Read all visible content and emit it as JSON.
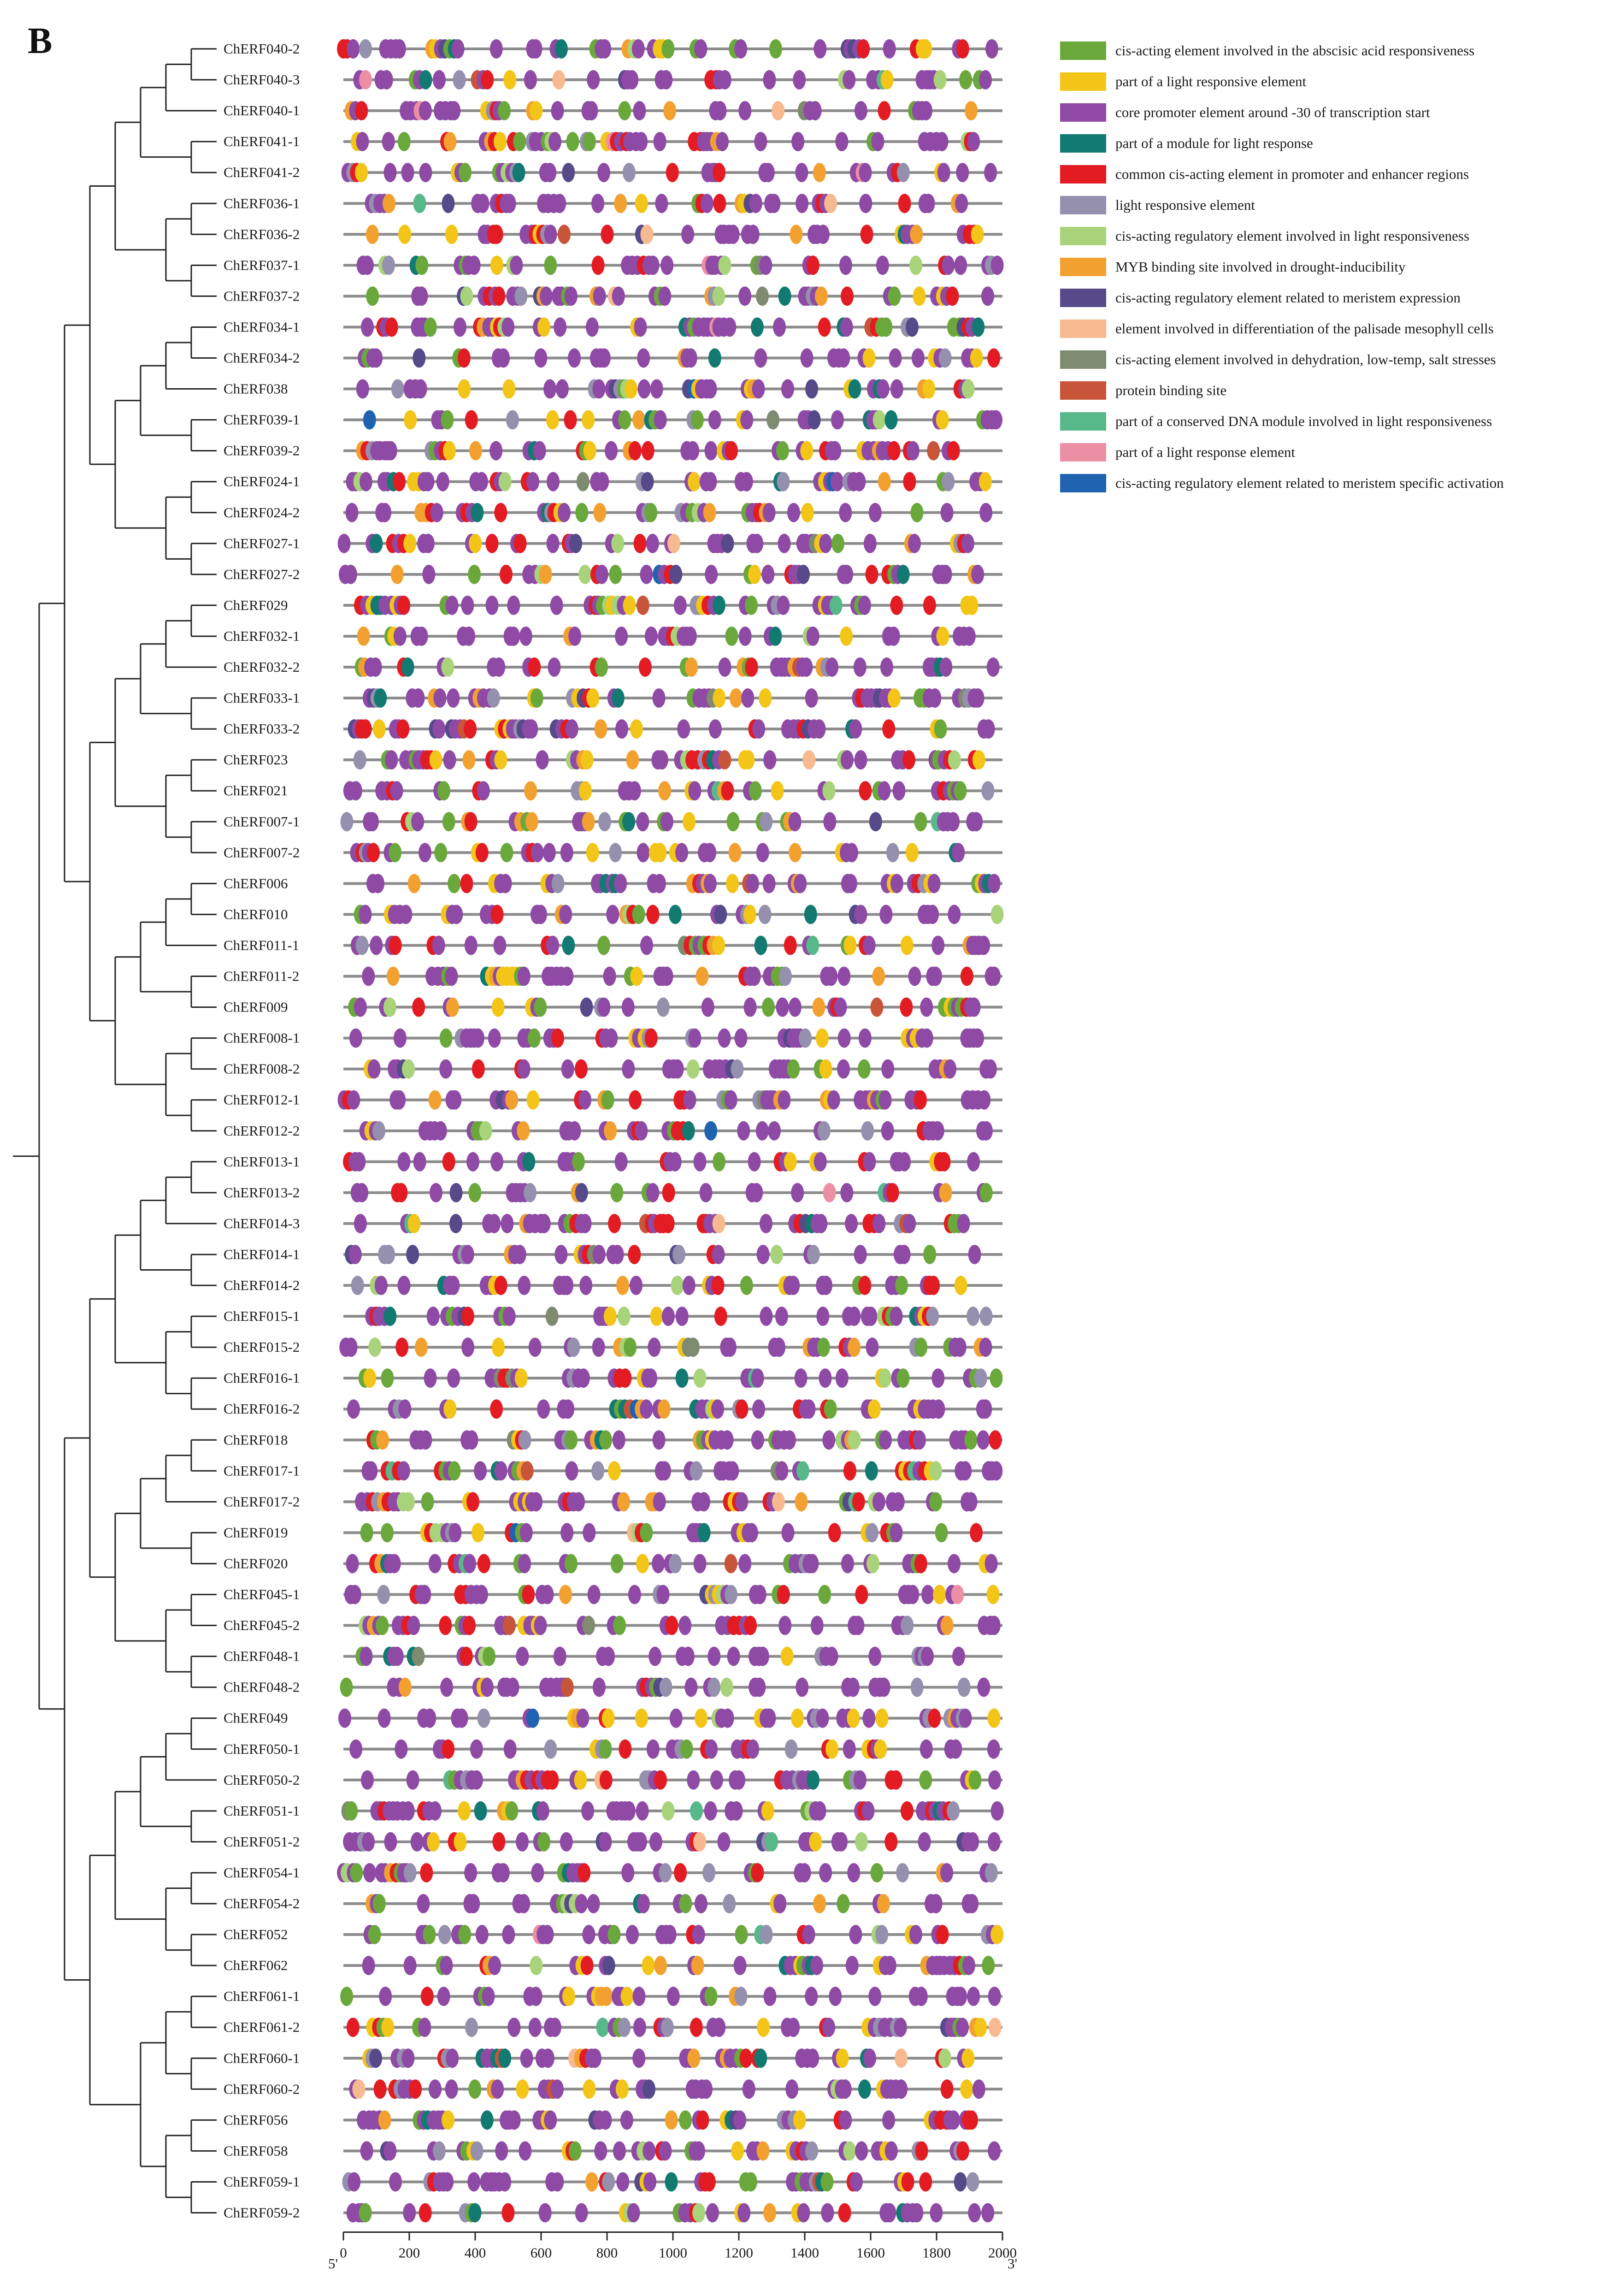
{
  "panel_label": "B",
  "axis": {
    "min": 0,
    "max": 2000,
    "ticks": [
      0,
      200,
      400,
      600,
      800,
      1000,
      1200,
      1400,
      1600,
      1800,
      2000
    ],
    "start_label": "5'",
    "end_label": "3'"
  },
  "genes": [
    "ChERF040-2",
    "ChERF040-3",
    "ChERF040-1",
    "ChERF041-1",
    "ChERF041-2",
    "ChERF036-1",
    "ChERF036-2",
    "ChERF037-1",
    "ChERF037-2",
    "ChERF034-1",
    "ChERF034-2",
    "ChERF038",
    "ChERF039-1",
    "ChERF039-2",
    "ChERF024-1",
    "ChERF024-2",
    "ChERF027-1",
    "ChERF027-2",
    "ChERF029",
    "ChERF032-1",
    "ChERF032-2",
    "ChERF033-1",
    "ChERF033-2",
    "ChERF023",
    "ChERF021",
    "ChERF007-1",
    "ChERF007-2",
    "ChERF006",
    "ChERF010",
    "ChERF011-1",
    "ChERF011-2",
    "ChERF009",
    "ChERF008-1",
    "ChERF008-2",
    "ChERF012-1",
    "ChERF012-2",
    "ChERF013-1",
    "ChERF013-2",
    "ChERF014-3",
    "ChERF014-1",
    "ChERF014-2",
    "ChERF015-1",
    "ChERF015-2",
    "ChERF016-1",
    "ChERF016-2",
    "ChERF018",
    "ChERF017-1",
    "ChERF017-2",
    "ChERF019",
    "ChERF020",
    "ChERF045-1",
    "ChERF045-2",
    "ChERF048-1",
    "ChERF048-2",
    "ChERF049",
    "ChERF050-1",
    "ChERF050-2",
    "ChERF051-1",
    "ChERF051-2",
    "ChERF054-1",
    "ChERF054-2",
    "ChERF052",
    "ChERF062",
    "ChERF061-1",
    "ChERF061-2",
    "ChERF060-1",
    "ChERF060-2",
    "ChERF056",
    "ChERF058",
    "ChERF059-1",
    "ChERF059-2"
  ],
  "legend": [
    {
      "label": "cis-acting element involved in the abscisic acid responsiveness",
      "color": "#6aa83c"
    },
    {
      "label": "part of a light responsive element",
      "color": "#f2c518"
    },
    {
      "label": "core promoter element around -30 of transcription start",
      "color": "#8e4aa5"
    },
    {
      "label": "part of a module for light response",
      "color": "#137a72"
    },
    {
      "label": "common cis-acting element in promoter and enhancer regions",
      "color": "#e31c23"
    },
    {
      "label": "light responsive element",
      "color": "#9490ad"
    },
    {
      "label": "cis-acting regulatory element involved in light responsiveness",
      "color": "#a9d37a"
    },
    {
      "label": "MYB binding site involved in drought-inducibility",
      "color": "#f2a130"
    },
    {
      "label": "cis-acting regulatory element related to meristem expression",
      "color": "#574a8a"
    },
    {
      "label": "element involved in differentiation of the palisade mesophyll cells",
      "color": "#f7b98f"
    },
    {
      "label": "cis-acting element involved in dehydration, low-temp, salt stresses",
      "color": "#7f8b70"
    },
    {
      "label": "protein binding site",
      "color": "#c8553a"
    },
    {
      "label": "part of a conserved DNA module involved in light responsiveness",
      "color": "#57b88a"
    },
    {
      "label": "part of a light response element",
      "color": "#ec8fa5"
    },
    {
      "label": "cis-acting regulatory element related to meristem specific activation",
      "color": "#1f63b0"
    }
  ],
  "colors": {
    "line": "#8c8c8c",
    "tree": "#222222"
  }
}
